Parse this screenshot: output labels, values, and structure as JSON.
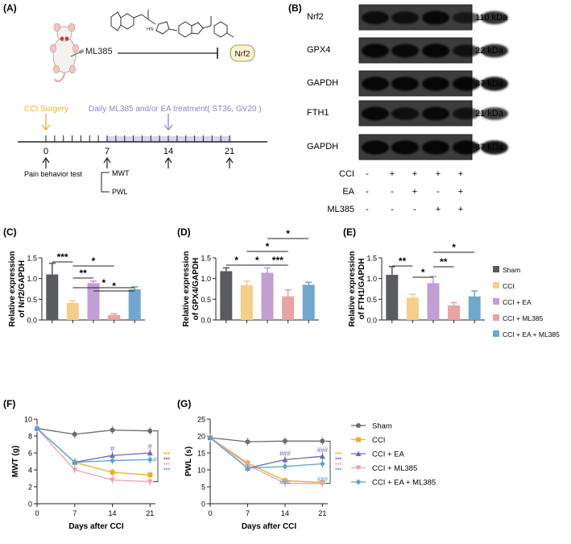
{
  "panelA": {
    "label": "(A)",
    "drug": "ML385",
    "target": "Nrf2",
    "surgery_label": "CCI Surgery",
    "treatment_label": "Daily ML385 and/or EA treatment( ST36, GV20 )",
    "timeline_days": [
      "0",
      "7",
      "14",
      "21"
    ],
    "pain_test_label": "Pain behavior test",
    "tests": [
      "MWT",
      "PWL"
    ],
    "colors": {
      "surgery": "#e8b22a",
      "treatment": "#8a86c8"
    }
  },
  "panelB": {
    "label": "(B)",
    "blots": [
      {
        "name": "Nrf2",
        "size": "110 kDa"
      },
      {
        "name": "GPX4",
        "size": "22 kDa"
      },
      {
        "name": "GAPDH",
        "size": "37 kDa"
      },
      {
        "name": "FTH1",
        "size": "21 kDa"
      },
      {
        "name": "GAPDH",
        "size": "37 kDa"
      }
    ],
    "conditions": [
      {
        "name": "CCI",
        "signs": [
          "-",
          "+",
          "+",
          "+",
          "+"
        ]
      },
      {
        "name": "EA",
        "signs": [
          "-",
          "-",
          "+",
          "-",
          "+"
        ]
      },
      {
        "name": "ML385",
        "signs": [
          "-",
          "-",
          "-",
          "+",
          "+"
        ]
      }
    ]
  },
  "legend_groups": [
    "Sham",
    "CCI",
    "CCI + EA",
    "CCI + ML385",
    "CCI + EA + ML385"
  ],
  "group_colors": [
    "#5a5b5e",
    "#f5ce8a",
    "#c19fd3",
    "#e8a3a3",
    "#6fa8cc"
  ],
  "chart_data": [
    {
      "type": "bar",
      "panel": "(C)",
      "ylabel": "Relative expression of Nrf2/GAPDH",
      "ylim": [
        0,
        1.5
      ],
      "yticks": [
        "0.0",
        "0.5",
        "1.0",
        "1.5"
      ],
      "categories": [
        "Sham",
        "CCI",
        "CCI + EA",
        "CCI + ML385",
        "CCI + EA + ML385"
      ],
      "values": [
        1.1,
        0.41,
        0.89,
        0.12,
        0.74
      ],
      "errors": [
        0.27,
        0.05,
        0.05,
        0.03,
        0.06
      ],
      "sig": [
        {
          "from": 0,
          "to": 1,
          "label": "***",
          "level": 0
        },
        {
          "from": 1,
          "to": 2,
          "label": "**",
          "level": 2
        },
        {
          "from": 1,
          "to": 3,
          "label": "*",
          "level": 3
        },
        {
          "from": 1,
          "to": 4,
          "label": "*",
          "level": 4
        },
        {
          "from": 2,
          "to": 4,
          "label": "*",
          "level": 1
        }
      ]
    },
    {
      "type": "bar",
      "panel": "(D)",
      "ylabel": "Relative expression of GPX4/GAPDH",
      "ylim": [
        0,
        1.5
      ],
      "yticks": [
        "0.0",
        "0.5",
        "1.0",
        "1.5"
      ],
      "categories": [
        "Sham",
        "CCI",
        "CCI + EA",
        "CCI + ML385",
        "CCI + EA + ML385"
      ],
      "values": [
        1.18,
        0.84,
        1.14,
        0.57,
        0.85
      ],
      "errors": [
        0.08,
        0.1,
        0.12,
        0.16,
        0.06
      ],
      "sig": [
        {
          "from": 0,
          "to": 1,
          "label": "*",
          "level": 0
        },
        {
          "from": 1,
          "to": 2,
          "label": "*",
          "level": 1
        },
        {
          "from": 2,
          "to": 3,
          "label": "***",
          "level": 2
        },
        {
          "from": 1,
          "to": 3,
          "label": "*",
          "level": 3
        },
        {
          "from": 2,
          "to": 4,
          "label": "*",
          "level": 4
        }
      ]
    },
    {
      "type": "bar",
      "panel": "(E)",
      "ylabel": "Relative expression of FTH1/GAPDH",
      "ylim": [
        0,
        1.5
      ],
      "yticks": [
        "0.0",
        "0.5",
        "1.0",
        "1.5"
      ],
      "categories": [
        "Sham",
        "CCI",
        "CCI + EA",
        "CCI + ML385",
        "CCI + EA + ML385"
      ],
      "values": [
        1.09,
        0.54,
        0.89,
        0.35,
        0.57
      ],
      "errors": [
        0.2,
        0.08,
        0.16,
        0.07,
        0.13
      ],
      "sig": [
        {
          "from": 0,
          "to": 1,
          "label": "**",
          "level": 0
        },
        {
          "from": 1,
          "to": 2,
          "label": "*",
          "level": 1
        },
        {
          "from": 2,
          "to": 3,
          "label": "**",
          "level": 2
        },
        {
          "from": 2,
          "to": 4,
          "label": "*",
          "level": 3
        }
      ]
    },
    {
      "type": "line",
      "panel": "(F)",
      "xlabel": "Days after CCI",
      "ylabel": "MWT (g)",
      "x": [
        0,
        7,
        14,
        21
      ],
      "xlim": [
        0,
        22
      ],
      "ylim": [
        0,
        10
      ],
      "yticks": [
        "0",
        "2",
        "4",
        "6",
        "8",
        "10"
      ],
      "xticks": [
        "0",
        "7",
        "14",
        "21"
      ],
      "series": [
        {
          "name": "Sham",
          "values": [
            8.9,
            8.2,
            8.7,
            8.6
          ],
          "marker": "circle"
        },
        {
          "name": "CCI",
          "values": [
            8.9,
            4.9,
            3.7,
            3.4
          ],
          "marker": "square"
        },
        {
          "name": "CCI + EA",
          "values": [
            8.9,
            4.9,
            5.7,
            6.0
          ],
          "marker": "triangle-up"
        },
        {
          "name": "CCI + ML385",
          "values": [
            8.9,
            4.0,
            2.8,
            2.6
          ],
          "marker": "triangle-down"
        },
        {
          "name": "CCI + EA + ML385",
          "values": [
            8.9,
            4.9,
            5.1,
            5.2
          ],
          "marker": "diamond"
        }
      ],
      "annotations": {
        "hash_points": [
          [
            "CCI + EA",
            14,
            "#"
          ],
          [
            "CCI + EA",
            21,
            "#"
          ],
          [
            "CCI + EA + ML385",
            21,
            "#"
          ]
        ],
        "stars": [
          "***",
          "***",
          "***",
          "***"
        ]
      }
    },
    {
      "type": "line",
      "panel": "(G)",
      "xlabel": "Days after CCI",
      "ylabel": "PWL (s)",
      "x": [
        0,
        7,
        14,
        21
      ],
      "xlim": [
        0,
        22
      ],
      "ylim": [
        0,
        25
      ],
      "yticks": [
        "0",
        "5",
        "10",
        "15",
        "20",
        "25"
      ],
      "xticks": [
        "0",
        "7",
        "14",
        "21"
      ],
      "series": [
        {
          "name": "Sham",
          "values": [
            19.5,
            18.3,
            18.5,
            18.5
          ],
          "marker": "circle"
        },
        {
          "name": "CCI",
          "values": [
            19.5,
            12.0,
            6.8,
            6.3
          ],
          "marker": "square"
        },
        {
          "name": "CCI + EA",
          "values": [
            19.5,
            10.5,
            13.0,
            14.0
          ],
          "marker": "triangle-up"
        },
        {
          "name": "CCI + ML385",
          "values": [
            19.5,
            11.5,
            6.0,
            6.0
          ],
          "marker": "triangle-down"
        },
        {
          "name": "CCI + EA + ML385",
          "values": [
            19.5,
            10.5,
            11.0,
            11.8
          ],
          "marker": "diamond"
        }
      ],
      "annotations": {
        "hash_labels": [
          "###",
          "###",
          "###",
          "###"
        ],
        "stars": [
          "***",
          "***",
          "***",
          "***"
        ]
      }
    }
  ]
}
